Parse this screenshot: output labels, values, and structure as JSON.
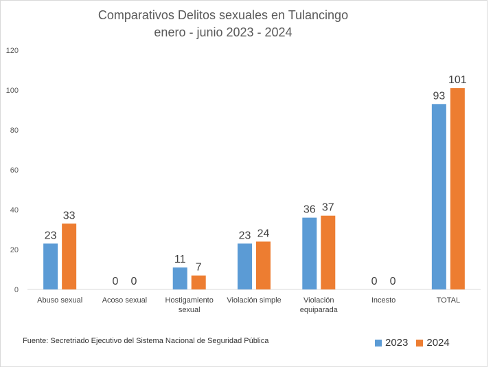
{
  "chart_data": {
    "type": "bar",
    "title": "Comparativos Delitos sexuales en Tulancingo",
    "subtitle": "enero - junio 2023 - 2024",
    "categories": [
      [
        "Abuso sexual"
      ],
      [
        "Acoso sexual"
      ],
      [
        "Hostigamiento",
        "sexual"
      ],
      [
        "Violación simple"
      ],
      [
        "Violación",
        "equiparada"
      ],
      [
        "Incesto"
      ],
      [
        "TOTAL"
      ]
    ],
    "series": [
      {
        "name": "2023",
        "color": "#5b9bd5",
        "values": [
          23,
          0,
          11,
          23,
          36,
          0,
          93
        ]
      },
      {
        "name": "2024",
        "color": "#ed7d31",
        "values": [
          33,
          0,
          7,
          24,
          37,
          0,
          101
        ]
      }
    ],
    "ylim": [
      0,
      120
    ],
    "yticks": [
      0,
      20,
      40,
      60,
      80,
      100,
      120
    ],
    "grid": false,
    "legend": "bottom-right",
    "source": "Fuente:  Secretriado Ejecutivo del Sistema Nacional de Seguridad Pública"
  }
}
